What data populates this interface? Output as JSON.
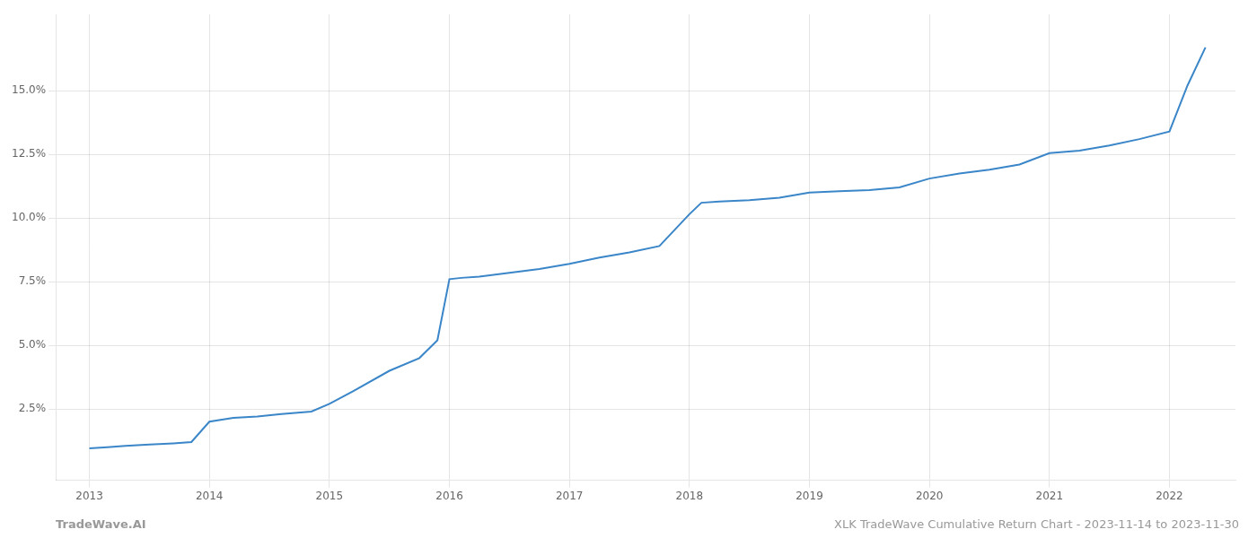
{
  "chart_data": {
    "type": "line",
    "x": [
      2013.0,
      2013.15,
      2013.3,
      2013.5,
      2013.7,
      2013.85,
      2014.0,
      2014.2,
      2014.4,
      2014.6,
      2014.85,
      2015.0,
      2015.2,
      2015.5,
      2015.75,
      2015.9,
      2016.0,
      2016.1,
      2016.25,
      2016.5,
      2016.75,
      2017.0,
      2017.25,
      2017.5,
      2017.75,
      2018.0,
      2018.1,
      2018.25,
      2018.5,
      2018.75,
      2019.0,
      2019.25,
      2019.5,
      2019.75,
      2020.0,
      2020.25,
      2020.5,
      2020.75,
      2021.0,
      2021.25,
      2021.5,
      2021.75,
      2022.0,
      2022.15,
      2022.3
    ],
    "values": [
      0.95,
      1.0,
      1.05,
      1.1,
      1.15,
      1.2,
      2.0,
      2.15,
      2.2,
      2.3,
      2.4,
      2.7,
      3.2,
      4.0,
      4.5,
      5.2,
      7.6,
      7.65,
      7.7,
      7.85,
      8.0,
      8.2,
      8.45,
      8.65,
      8.9,
      10.15,
      10.6,
      10.65,
      10.7,
      10.8,
      11.0,
      11.05,
      11.1,
      11.2,
      11.55,
      11.75,
      11.9,
      12.1,
      12.55,
      12.65,
      12.85,
      13.1,
      13.4,
      15.2,
      16.7
    ],
    "color": "#3a86c8",
    "xlim": [
      2012.72,
      2022.55
    ],
    "ylim": [
      -0.3,
      18.0
    ],
    "xticks": [
      2013,
      2014,
      2015,
      2016,
      2017,
      2018,
      2019,
      2020,
      2021,
      2022
    ],
    "yticks": [
      {
        "value": 2.5,
        "label": "2.5%"
      },
      {
        "value": 5.0,
        "label": "5.0%"
      },
      {
        "value": 7.5,
        "label": "7.5%"
      },
      {
        "value": 10.0,
        "label": "10.0%"
      },
      {
        "value": 12.5,
        "label": "12.5%"
      },
      {
        "value": 15.0,
        "label": "15.0%"
      }
    ],
    "grid": true,
    "annotations": [
      "TradeWave.AI",
      "XLK TradeWave Cumulative Return Chart - 2023-11-14 to 2023-11-30"
    ]
  }
}
